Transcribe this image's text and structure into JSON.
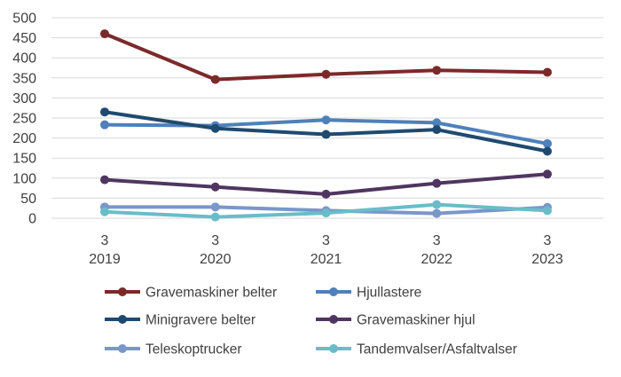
{
  "chart_data": {
    "type": "line",
    "title": "",
    "xlabel": "",
    "ylabel": "",
    "ylim": [
      0,
      500
    ],
    "y_ticks": [
      "0",
      "50",
      "100",
      "150",
      "200",
      "250",
      "300",
      "350",
      "400",
      "450",
      "500"
    ],
    "categories": [
      {
        "top": "3",
        "bottom": "2019"
      },
      {
        "top": "3",
        "bottom": "2020"
      },
      {
        "top": "3",
        "bottom": "2021"
      },
      {
        "top": "3",
        "bottom": "2022"
      },
      {
        "top": "3",
        "bottom": "2023"
      }
    ],
    "grid": true,
    "legend_position": "bottom",
    "series": [
      {
        "name": "Gravemaskiner belter",
        "color": "#7b2a2a",
        "values": [
          460,
          346,
          359,
          369,
          364
        ]
      },
      {
        "name": "Hjullastere",
        "color": "#4e80bb",
        "values": [
          233,
          231,
          245,
          238,
          186
        ]
      },
      {
        "name": "Minigravere belter",
        "color": "#1f4a70",
        "values": [
          265,
          224,
          209,
          221,
          167
        ]
      },
      {
        "name": "Gravemaskiner hjul",
        "color": "#4f3660",
        "values": [
          96,
          78,
          60,
          87,
          110
        ]
      },
      {
        "name": "Teleskoptrucker",
        "color": "#7a97c9",
        "values": [
          28,
          28,
          19,
          12,
          27
        ]
      },
      {
        "name": "Tandemvalser/Asfaltvalser",
        "color": "#6bbcc9",
        "values": [
          16,
          3,
          13,
          34,
          19
        ]
      }
    ]
  }
}
